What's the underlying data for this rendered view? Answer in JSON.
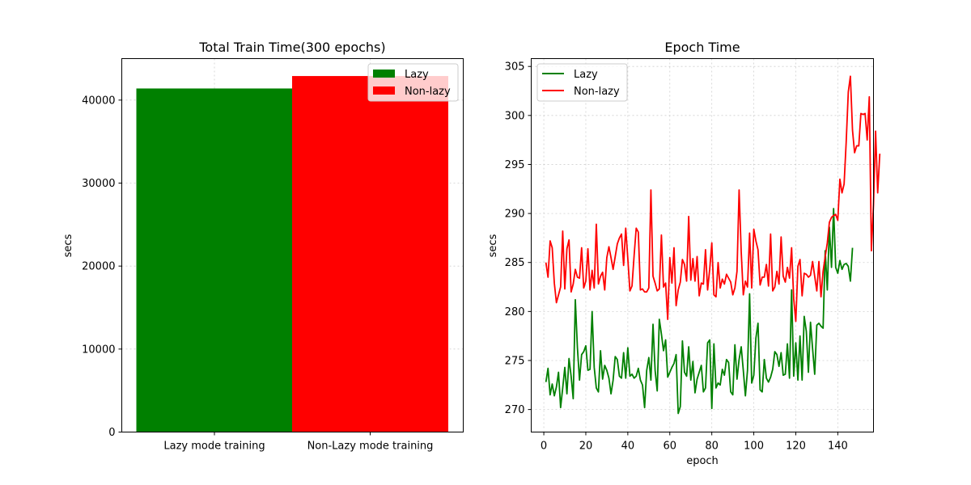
{
  "chart_data": [
    {
      "type": "bar",
      "title": "Total Train Time(300 epochs)",
      "xlabel": "",
      "ylabel": "secs",
      "ylim": [
        0,
        45000
      ],
      "yticks": [
        0,
        10000,
        20000,
        30000,
        40000
      ],
      "categories": [
        "Lazy mode training",
        "Non-Lazy mode training"
      ],
      "series": [
        {
          "name": "Lazy",
          "color": "#008000",
          "values": [
            41400,
            null
          ]
        },
        {
          "name": "Non-lazy",
          "color": "#ff0000",
          "values": [
            null,
            42900
          ]
        }
      ],
      "grid": true,
      "legend_position": "top-right"
    },
    {
      "type": "line",
      "title": "Epoch Time",
      "xlabel": "epoch",
      "ylabel": "secs",
      "xlim": [
        -6,
        157
      ],
      "ylim": [
        267.7,
        305.8
      ],
      "xticks": [
        0,
        20,
        40,
        60,
        80,
        100,
        120,
        140
      ],
      "yticks": [
        270,
        275,
        280,
        285,
        290,
        295,
        300,
        305
      ],
      "grid": true,
      "legend_position": "top-left",
      "series": [
        {
          "name": "Lazy",
          "color": "#008000",
          "x_start": 1,
          "x_step": 1,
          "values": [
            272.8,
            274.2,
            271.5,
            272.6,
            271.4,
            272.3,
            273.8,
            270.2,
            272.2,
            274.3,
            271.6,
            275.2,
            273.4,
            271.1,
            281.2,
            276.3,
            273.0,
            275.6,
            275.9,
            276.5,
            274.0,
            274.1,
            280.0,
            274.3,
            272.2,
            271.8,
            276.0,
            273.1,
            274.5,
            274.0,
            273.2,
            271.6,
            273.0,
            275.4,
            275.1,
            273.4,
            273.2,
            275.8,
            273.2,
            276.3,
            273.4,
            273.6,
            273.2,
            273.4,
            274.2,
            273.0,
            272.5,
            270.2,
            274.0,
            275.3,
            273.0,
            278.7,
            274.0,
            271.9,
            279.2,
            277.7,
            276.0,
            277.1,
            273.3,
            273.8,
            274.3,
            274.7,
            275.6,
            269.6,
            270.3,
            277.0,
            273.8,
            273.4,
            276.4,
            273.0,
            274.9,
            271.7,
            273.1,
            273.8,
            274.5,
            271.8,
            272.2,
            276.8,
            277.1,
            270.1,
            276.7,
            272.2,
            272.7,
            272.5,
            274.1,
            273.5,
            275.1,
            274.8,
            271.8,
            271.5,
            276.6,
            273.1,
            275.1,
            276.4,
            274.0,
            271.4,
            274.0,
            281.8,
            272.7,
            273.5,
            277.3,
            278.8,
            272.0,
            271.8,
            275.1,
            273.2,
            272.8,
            273.3,
            274.1,
            275.9,
            275.6,
            274.4,
            275.8,
            273.5,
            273.6,
            276.7,
            273.2,
            282.2,
            273.4,
            276.8,
            273.0,
            277.5,
            273.0,
            279.5,
            278.0,
            273.8,
            278.9,
            276.2,
            273.6,
            278.6,
            278.8,
            278.5,
            278.3,
            286.2,
            282.2,
            288.6,
            284.5,
            290.5,
            284.5,
            283.9,
            285.2,
            284.3,
            284.8,
            284.9,
            284.6,
            283.1,
            286.5
          ]
        },
        {
          "name": "Non-lazy",
          "color": "#ff0000",
          "x_start": 1,
          "x_step": 1,
          "values": [
            285.0,
            283.5,
            287.2,
            286.5,
            282.9,
            280.9,
            281.7,
            282.5,
            288.2,
            282.3,
            286.4,
            287.3,
            282.0,
            282.8,
            284.3,
            283.5,
            283.4,
            286.5,
            282.4,
            283.1,
            286.4,
            282.2,
            284.2,
            282.4,
            288.9,
            282.8,
            283.6,
            284.0,
            282.2,
            285.5,
            286.6,
            285.5,
            284.3,
            285.6,
            286.9,
            287.5,
            287.9,
            284.7,
            288.5,
            285.4,
            282.1,
            282.6,
            285.7,
            288.5,
            288.1,
            282.2,
            282.3,
            282.0,
            282.0,
            282.4,
            292.4,
            283.6,
            282.9,
            282.1,
            282.3,
            287.8,
            282.5,
            282.9,
            279.2,
            285.5,
            282.9,
            286.5,
            280.6,
            282.2,
            283.0,
            285.3,
            284.8,
            283.1,
            289.7,
            283.2,
            285.4,
            283.1,
            285.6,
            281.6,
            282.9,
            282.8,
            286.3,
            282.2,
            284.3,
            287.0,
            281.7,
            281.5,
            285.0,
            282.4,
            283.3,
            282.8,
            283.8,
            283.4,
            283.0,
            281.7,
            282.4,
            284.1,
            292.4,
            286.1,
            281.7,
            283.1,
            282.5,
            288.0,
            282.4,
            288.4,
            287.2,
            286.3,
            282.7,
            283.5,
            283.5,
            284.8,
            282.6,
            287.9,
            282.1,
            282.5,
            284.1,
            282.8,
            287.6,
            283.6,
            283.0,
            284.5,
            283.4,
            286.5,
            281.3,
            279.0,
            284.6,
            285.3,
            281.6,
            283.9,
            283.8,
            283.5,
            283.7,
            285.1,
            283.6,
            282.1,
            285.1,
            281.5,
            284.1,
            285.6,
            287.0,
            289.1,
            289.6,
            289.8,
            289.9,
            289.3,
            293.5,
            292.1,
            293.0,
            297.3,
            302.4,
            304.0,
            298.5,
            296.2,
            296.9,
            296.9,
            300.2,
            300.1,
            300.2,
            297.5,
            301.9,
            286.2,
            290.9,
            298.4,
            292.1,
            296.1
          ]
        }
      ]
    }
  ]
}
